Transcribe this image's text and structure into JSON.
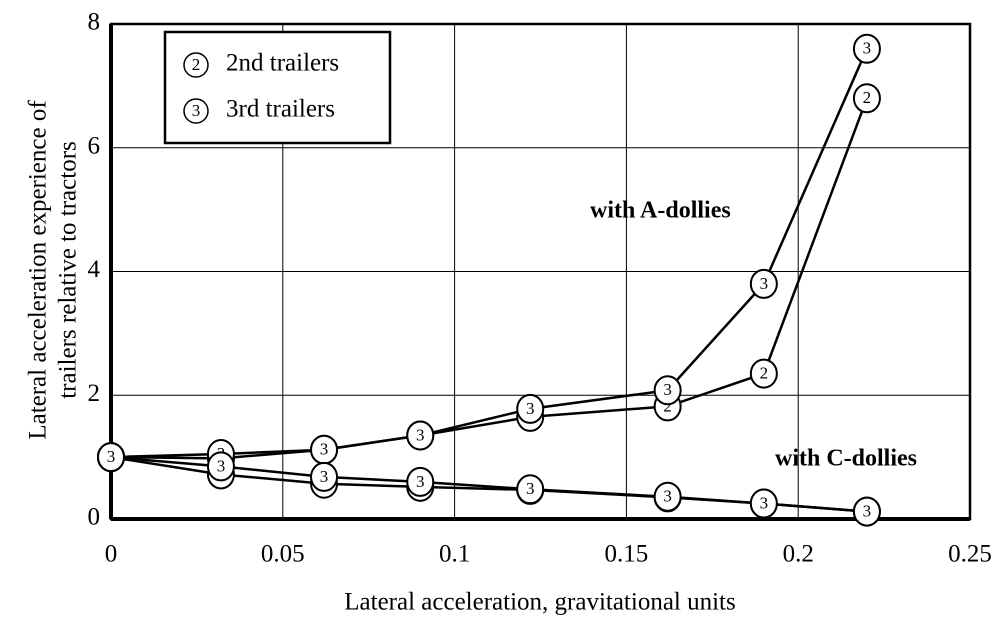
{
  "chart_data": {
    "type": "line",
    "xlabel": "Lateral acceleration, gravitational units",
    "ylabel": [
      "Lateral acceleration experience of",
      "trailers relative to tractors"
    ],
    "x": [
      0,
      0.032,
      0.062,
      0.09,
      0.122,
      0.162,
      0.19,
      0.22
    ],
    "series": [
      {
        "marker": "2",
        "color": "#000000",
        "values": [
          1.0,
          0.98,
          1.12,
          1.35,
          1.65,
          1.82,
          2.35,
          6.8
        ]
      },
      {
        "marker": "3",
        "color": "#000000",
        "values": [
          1.0,
          1.05,
          1.12,
          1.35,
          1.78,
          2.08,
          3.8,
          7.6
        ]
      },
      {
        "marker": "2",
        "color": "#000000",
        "values": [
          1.0,
          0.72,
          0.57,
          0.52,
          0.47,
          0.35,
          0.25,
          0.12
        ]
      },
      {
        "marker": "3",
        "color": "#000000",
        "values": [
          1.0,
          0.85,
          0.68,
          0.6,
          0.48,
          0.36,
          0.25,
          0.12
        ]
      }
    ],
    "legend": [
      {
        "marker": "2",
        "label": "2nd trailers"
      },
      {
        "marker": "3",
        "label": "3rd trailers"
      }
    ],
    "annotations": [
      "with A-dollies",
      "with C-dollies"
    ],
    "xlim": [
      0,
      0.25
    ],
    "xticks": [
      0,
      0.05,
      0.1,
      0.15,
      0.2,
      0.25
    ],
    "ylim": [
      0,
      8
    ],
    "yticks": [
      0,
      2,
      4,
      6,
      8
    ],
    "grid": true
  }
}
